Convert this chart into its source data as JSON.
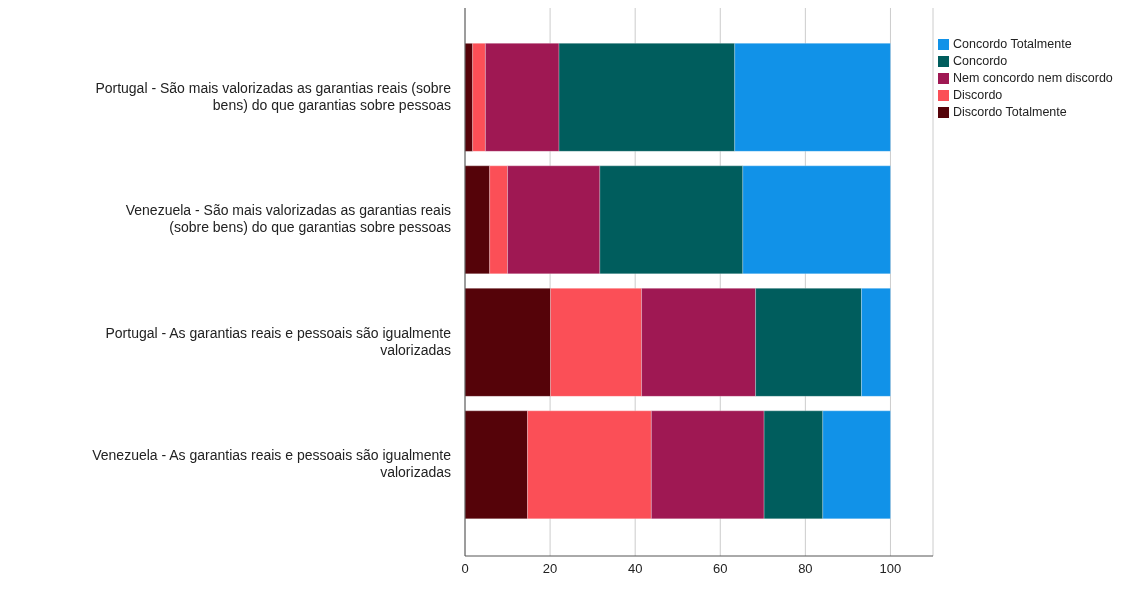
{
  "chart_data": {
    "type": "bar",
    "orientation": "horizontal",
    "stacked": true,
    "categories": [
      "Portugal - São mais valorizadas as garantias reais (sobre bens) do que garantias sobre pessoas",
      "Venezuela - São mais valorizadas as garantias reais (sobre bens) do que garantias sobre pessoas",
      "Portugal - As garantias reais e pessoais são igualmente valorizadas",
      "Venezuela - As garantias reais e pessoais são igualmente valorizadas"
    ],
    "series": [
      {
        "name": "Discordo Totalmente",
        "color": "#550309",
        "values": [
          1.8,
          5.8,
          20.1,
          14.7
        ]
      },
      {
        "name": "Discordo",
        "color": "#fb4f57",
        "values": [
          3.0,
          4.2,
          21.4,
          29.1
        ]
      },
      {
        "name": "Nem concordo nem discordo",
        "color": "#9f1853",
        "values": [
          17.3,
          21.7,
          26.8,
          26.5
        ]
      },
      {
        "name": "Concordo",
        "color": "#005d5d",
        "values": [
          41.3,
          33.6,
          24.9,
          13.8
        ]
      },
      {
        "name": "Concordo Totalmente",
        "color": "#1192e8",
        "values": [
          36.6,
          34.7,
          6.8,
          15.9
        ]
      }
    ],
    "xlim": [
      0,
      110
    ],
    "xticks": [
      0,
      20,
      40,
      60,
      80,
      100
    ],
    "grid": "x",
    "legend": "top right"
  }
}
